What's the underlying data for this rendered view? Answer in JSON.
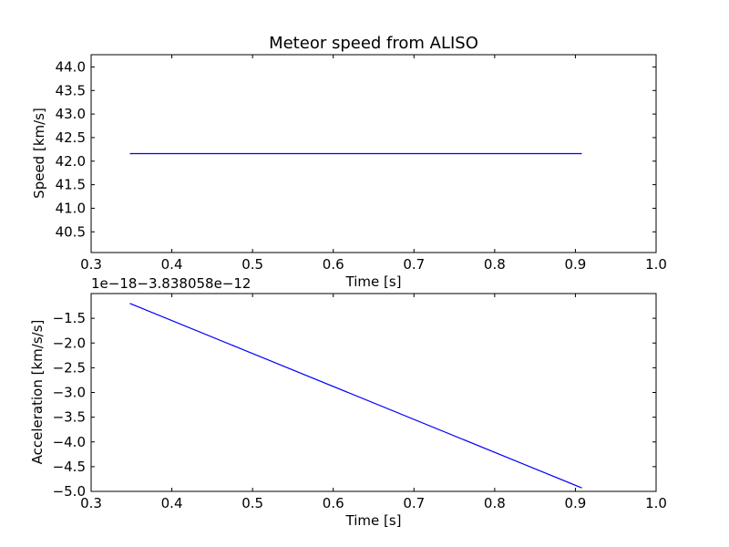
{
  "chart_data": [
    {
      "type": "line",
      "title": "Meteor speed from  ALISO",
      "xlabel": "Time [s]",
      "ylabel": "Speed [km/s]",
      "xlim": [
        0.3,
        1.0
      ],
      "ylim": [
        40.06,
        44.26
      ],
      "xticks": [
        0.3,
        0.4,
        0.5,
        0.6,
        0.7,
        0.8,
        0.9,
        1.0
      ],
      "xtick_labels": [
        "0.3",
        "0.4",
        "0.5",
        "0.6",
        "0.7",
        "0.8",
        "0.9",
        "1.0"
      ],
      "yticks": [
        40.5,
        41.0,
        41.5,
        42.0,
        42.5,
        43.0,
        43.5,
        44.0
      ],
      "ytick_labels": [
        "40.5",
        "41.0",
        "41.5",
        "42.0",
        "42.5",
        "43.0",
        "43.5",
        "44.0"
      ],
      "grid": false,
      "line_color": "#0000ff",
      "series": [
        {
          "x": [
            0.348,
            0.908
          ],
          "y": [
            42.16,
            42.16
          ]
        }
      ]
    },
    {
      "type": "line",
      "title": "",
      "xlabel": "Time [s]",
      "ylabel": "Acceleration [km/s/s]",
      "offset_text": "1e−18−3.838058e−12",
      "xlim": [
        0.3,
        1.0
      ],
      "ylim": [
        -5.0,
        -1.0
      ],
      "xticks": [
        0.3,
        0.4,
        0.5,
        0.6,
        0.7,
        0.8,
        0.9,
        1.0
      ],
      "xtick_labels": [
        "0.3",
        "0.4",
        "0.5",
        "0.6",
        "0.7",
        "0.8",
        "0.9",
        "1.0"
      ],
      "yticks": [
        -5.0,
        -4.5,
        -4.0,
        -3.5,
        -3.0,
        -2.5,
        -2.0,
        -1.5
      ],
      "ytick_labels": [
        "−5.0",
        "−4.5",
        "−4.0",
        "−3.5",
        "−3.0",
        "−2.5",
        "−2.0",
        "−1.5"
      ],
      "grid": false,
      "line_color": "#0000ff",
      "series": [
        {
          "x": [
            0.348,
            0.908
          ],
          "y": [
            -1.2,
            -4.93
          ]
        }
      ]
    }
  ]
}
